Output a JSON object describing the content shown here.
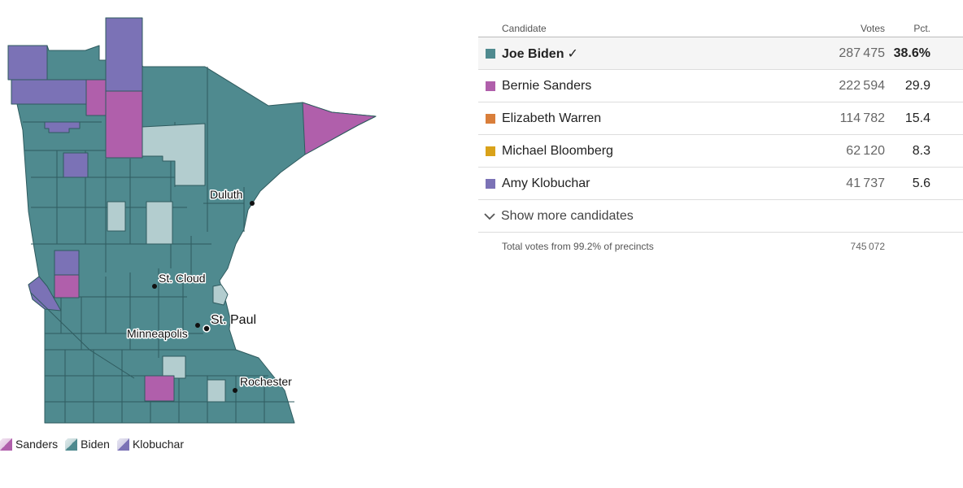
{
  "colors": {
    "biden": "#4f8a8f",
    "biden_light": "#b3cdcf",
    "sanders": "#b05fab",
    "klobuchar": "#7b72b6",
    "warren": "#d97e3a",
    "bloomberg": "#d9a21a",
    "border": "#2f5b5f",
    "dot": "#111111"
  },
  "map": {
    "cities": [
      {
        "name": "Duluth",
        "size": "normal"
      },
      {
        "name": "St. Cloud",
        "size": "normal"
      },
      {
        "name": "St. Paul",
        "size": "big"
      },
      {
        "name": "Minneapolis",
        "size": "normal"
      },
      {
        "name": "Rochester",
        "size": "normal"
      }
    ]
  },
  "legend": [
    {
      "label": "Sanders",
      "color_key": "sanders"
    },
    {
      "label": "Biden",
      "color_key": "biden"
    },
    {
      "label": "Klobuchar",
      "color_key": "klobuchar"
    }
  ],
  "table": {
    "headers": {
      "candidate": "Candidate",
      "votes": "Votes",
      "pct": "Pct."
    },
    "rows": [
      {
        "name": "Joe Biden",
        "votes": "287475",
        "pct": "38.6%",
        "color": "#4f8a8f",
        "winner": true,
        "check": "✓"
      },
      {
        "name": "Bernie Sanders",
        "votes": "222594",
        "pct": "29.9",
        "color": "#b05fab",
        "winner": false
      },
      {
        "name": "Elizabeth Warren",
        "votes": "114782",
        "pct": "15.4",
        "color": "#d97e3a",
        "winner": false
      },
      {
        "name": "Michael Bloomberg",
        "votes": "62120",
        "pct": "8.3",
        "color": "#d9a21a",
        "winner": false
      },
      {
        "name": "Amy Klobuchar",
        "votes": "41737",
        "pct": "5.6",
        "color": "#7b72b6",
        "winner": false
      }
    ],
    "show_more": "Show more candidates",
    "footer": {
      "label": "Total votes from 99.2% of precincts",
      "votes": "745072"
    }
  }
}
